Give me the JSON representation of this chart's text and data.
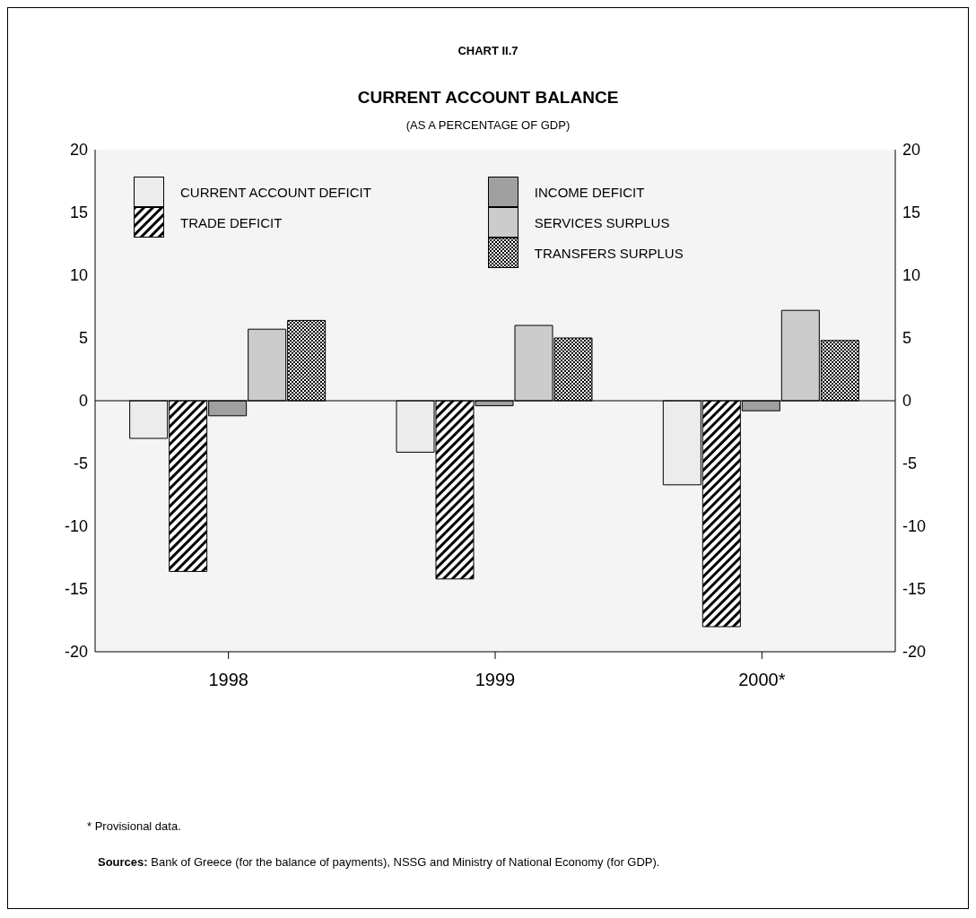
{
  "chart_data": {
    "type": "bar",
    "title": "CURRENT ACCOUNT BALANCE",
    "subtitle": "(AS A PERCENTAGE OF GDP)",
    "annotations": [
      "CHART II.7",
      "* Provisional data.",
      "Sources: Bank of Greece (for the balance of payments), NSSG and Ministry of National Economy (for GDP)."
    ],
    "categories": [
      "1998",
      "1999",
      "2000*"
    ],
    "series": [
      {
        "name": "CURRENT ACCOUNT DEFICIT",
        "color": "#ececec",
        "values": [
          -3.0,
          -4.1,
          -6.7
        ]
      },
      {
        "name": "TRADE DEFICIT",
        "color": "#000000",
        "values": [
          -13.6,
          -14.2,
          -18.0
        ]
      },
      {
        "name": "INCOME DEFICIT",
        "color": "#a0a0a0",
        "values": [
          -1.2,
          -0.4,
          -0.8
        ]
      },
      {
        "name": "SERVICES SURPLUS",
        "color": "#cccccc",
        "values": [
          5.7,
          6.0,
          7.2
        ]
      },
      {
        "name": "TRANSFERS SURPLUS",
        "color": "#000000",
        "values": [
          6.4,
          5.0,
          4.8
        ]
      }
    ],
    "ylim": [
      -20,
      20
    ],
    "yticks": [
      -20,
      -15,
      -10,
      -5,
      0,
      5,
      10,
      15,
      20
    ],
    "y2lim": [
      -20,
      20
    ],
    "y2ticks": [
      -20,
      -15,
      -10,
      -5,
      0,
      5,
      10,
      15,
      20
    ],
    "ref_lines": [
      {
        "axis": "y",
        "value": 0
      }
    ],
    "grid": false,
    "legend": "top"
  }
}
